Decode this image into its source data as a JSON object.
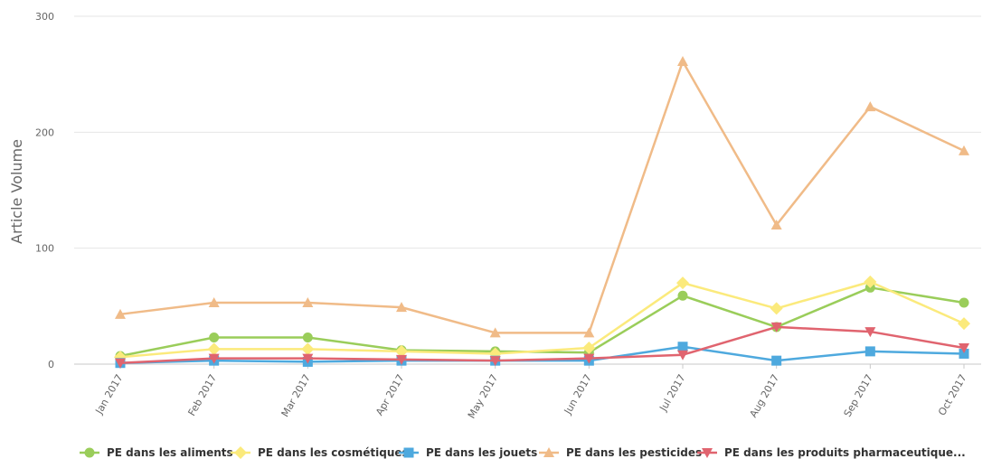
{
  "chart_data": {
    "type": "line",
    "title": "",
    "xlabel": "",
    "ylabel": "Article Volume",
    "ylim": [
      0,
      300
    ],
    "yticks": [
      0,
      100,
      200,
      300
    ],
    "grid": true,
    "legend_position": "bottom",
    "categories": [
      "Jan 2017",
      "Feb 2017",
      "Mar 2017",
      "Apr 2017",
      "May 2017",
      "Jun 2017",
      "Jul 2017",
      "Aug 2017",
      "Sep 2017",
      "Oct 2017"
    ],
    "series": [
      {
        "name": "PE dans les aliments",
        "color": "#9acd5a",
        "marker": "circle",
        "values": [
          7,
          23,
          23,
          12,
          11,
          10,
          59,
          32,
          66,
          53
        ]
      },
      {
        "name": "PE dans les cosmétiques",
        "color": "#fbea7c",
        "marker": "diamond",
        "values": [
          6,
          13,
          13,
          11,
          9,
          14,
          70,
          48,
          71,
          35
        ]
      },
      {
        "name": "PE dans les jouets",
        "color": "#4ea9de",
        "marker": "square",
        "values": [
          1,
          3,
          2,
          3,
          3,
          3,
          15,
          3,
          11,
          9
        ]
      },
      {
        "name": "PE dans les pesticides",
        "color": "#f0bb88",
        "marker": "triangle",
        "values": [
          43,
          53,
          53,
          49,
          27,
          27,
          261,
          120,
          222,
          184
        ]
      },
      {
        "name": "PE dans les produits pharmaceutique...",
        "color": "#e0646f",
        "marker": "triangle-down",
        "values": [
          1,
          5,
          5,
          4,
          3,
          5,
          8,
          32,
          28,
          14
        ]
      }
    ]
  }
}
